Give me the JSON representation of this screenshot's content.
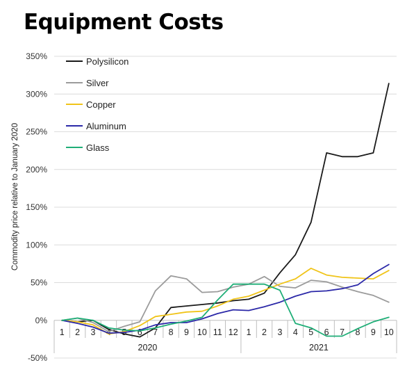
{
  "page_title": "Equipment Costs",
  "chart_data": {
    "type": "line",
    "title": "",
    "ylabel": "Commodity price relative to January 2020",
    "xlabel": "",
    "ylim": [
      -50,
      350
    ],
    "yticks": [
      -50,
      0,
      50,
      100,
      150,
      200,
      250,
      300,
      350
    ],
    "ytick_labels": [
      "-50%",
      "0%",
      "50%",
      "100%",
      "150%",
      "200%",
      "250%",
      "300%",
      "350%"
    ],
    "categories": [
      "1",
      "2",
      "3",
      "4",
      "5",
      "6",
      "7",
      "8",
      "9",
      "10",
      "11",
      "12",
      "1",
      "2",
      "3",
      "4",
      "5",
      "6",
      "7",
      "8",
      "9",
      "10"
    ],
    "year_groups": [
      {
        "label": "2020",
        "start": 0,
        "end": 11
      },
      {
        "label": "2021",
        "start": 12,
        "end": 21
      }
    ],
    "grid": "horizontal",
    "legend_position": "top-left",
    "series": [
      {
        "name": "Polysilicon",
        "color": "#1a1a1a",
        "values": [
          0,
          -2,
          0,
          -12,
          -18,
          -22,
          -10,
          17,
          19,
          21,
          23,
          26,
          28,
          36,
          63,
          87,
          130,
          222,
          217,
          217,
          222,
          314
        ]
      },
      {
        "name": "Silver",
        "color": "#9b9b9b",
        "values": [
          0,
          3,
          -3,
          -15,
          -8,
          -2,
          39,
          59,
          55,
          37,
          38,
          44,
          48,
          58,
          45,
          43,
          53,
          51,
          44,
          38,
          33,
          24
        ]
      },
      {
        "name": "Copper",
        "color": "#f0c419",
        "values": [
          0,
          -2,
          -6,
          -18,
          -15,
          -7,
          5,
          8,
          11,
          12,
          19,
          28,
          32,
          40,
          48,
          55,
          69,
          60,
          57,
          56,
          55,
          66
        ]
      },
      {
        "name": "Aluminum",
        "color": "#2b28a8",
        "values": [
          0,
          -4,
          -9,
          -17,
          -16,
          -13,
          -6,
          -3,
          -3,
          2,
          9,
          14,
          13,
          18,
          24,
          32,
          38,
          39,
          42,
          47,
          62,
          74
        ]
      },
      {
        "name": "Glass",
        "color": "#1fae77",
        "values": [
          0,
          3,
          0,
          -10,
          -13,
          -14,
          -10,
          -5,
          -1,
          4,
          27,
          48,
          48,
          48,
          40,
          -4,
          -10,
          -21,
          -21,
          -11,
          -2,
          4
        ]
      }
    ]
  }
}
